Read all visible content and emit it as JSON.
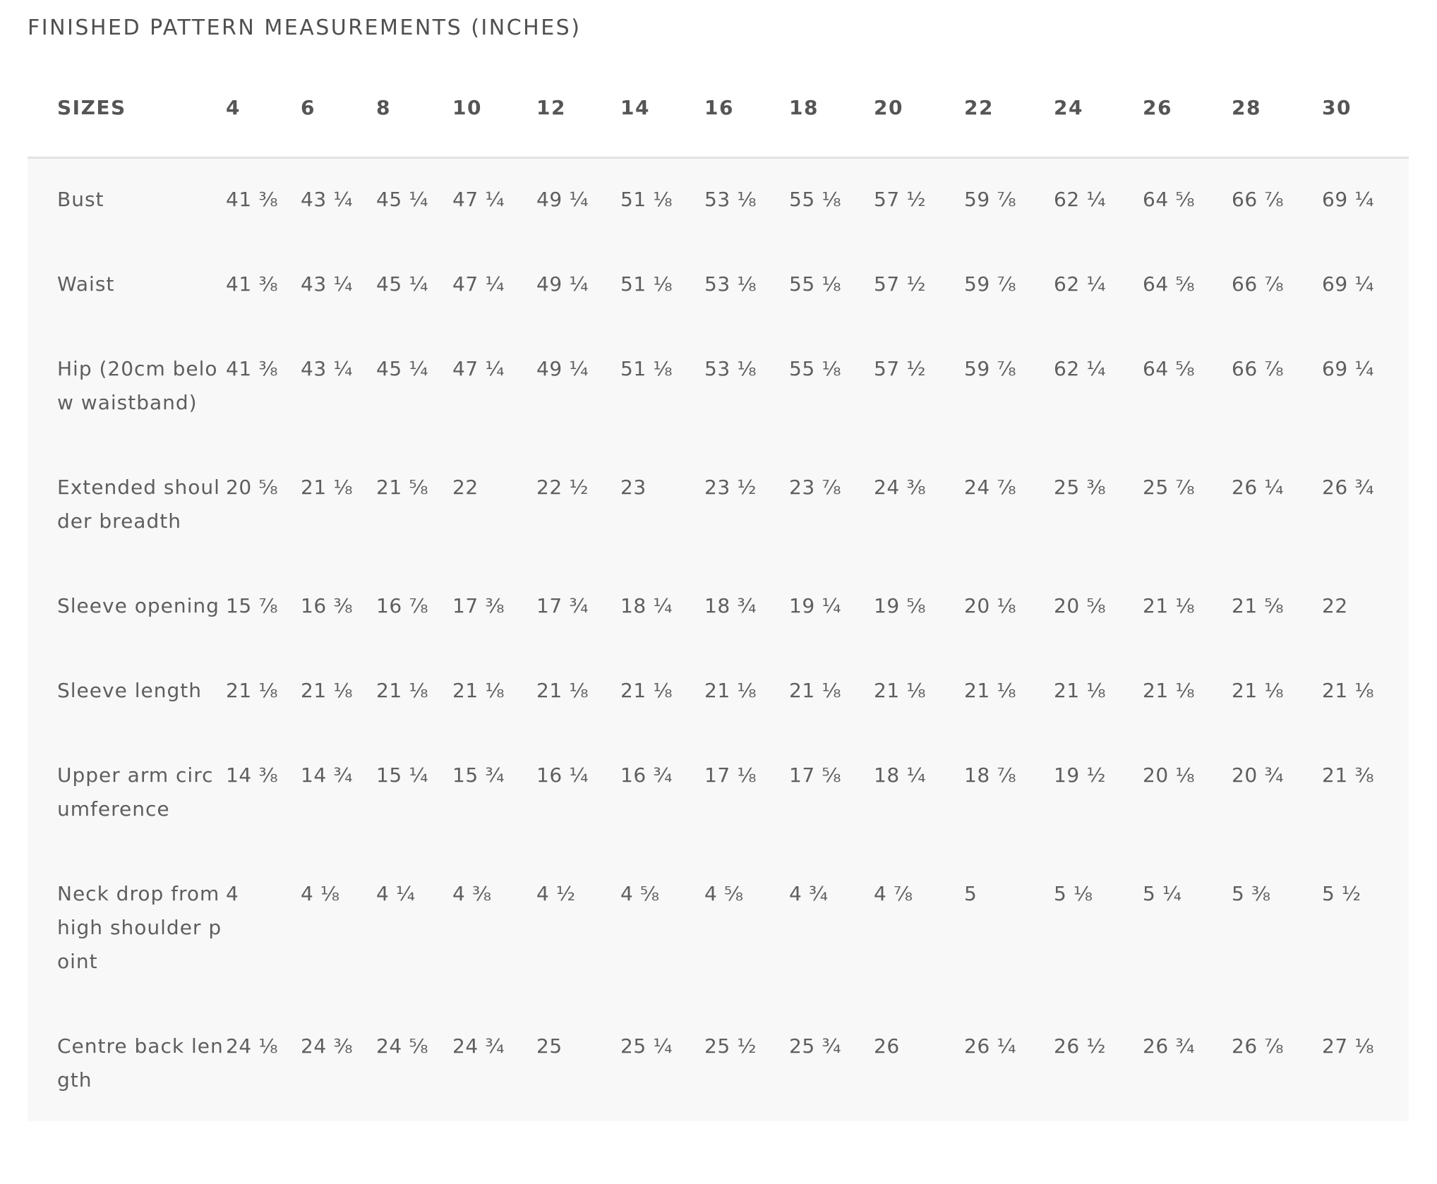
{
  "title": "FINISHED PATTERN MEASUREMENTS (INCHES)",
  "table": {
    "header_label": "SIZES",
    "sizes": [
      "4",
      "6",
      "8",
      "10",
      "12",
      "14",
      "16",
      "18",
      "20",
      "22",
      "24",
      "26",
      "28",
      "30"
    ],
    "rows": [
      {
        "label": "Bust",
        "values": [
          "41 ⅜",
          "43 ¼",
          "45 ¼",
          "47 ¼",
          "49 ¼",
          "51 ⅛",
          "53 ⅛",
          "55 ⅛",
          "57 ½",
          "59 ⅞",
          "62 ¼",
          "64 ⅝",
          "66 ⅞",
          "69 ¼"
        ]
      },
      {
        "label": "Waist",
        "values": [
          "41 ⅜",
          "43 ¼",
          "45 ¼",
          "47 ¼",
          "49 ¼",
          "51 ⅛",
          "53 ⅛",
          "55 ⅛",
          "57 ½",
          "59 ⅞",
          "62 ¼",
          "64 ⅝",
          "66 ⅞",
          "69 ¼"
        ]
      },
      {
        "label": "Hip (20cm below waistband)",
        "values": [
          "41 ⅜",
          "43 ¼",
          "45 ¼",
          "47 ¼",
          "49 ¼",
          "51 ⅛",
          "53 ⅛",
          "55 ⅛",
          "57 ½",
          "59 ⅞",
          "62 ¼",
          "64 ⅝",
          "66 ⅞",
          "69 ¼"
        ]
      },
      {
        "label": "Extended shoulder breadth",
        "values": [
          "20 ⅝",
          "21 ⅛",
          "21 ⅝",
          "22",
          "22 ½",
          "23",
          "23 ½",
          "23 ⅞",
          "24 ⅜",
          "24 ⅞",
          "25 ⅜",
          "25 ⅞",
          "26 ¼",
          "26 ¾"
        ]
      },
      {
        "label": "Sleeve opening",
        "values": [
          "15 ⅞",
          "16 ⅜",
          "16 ⅞",
          "17 ⅜",
          "17 ¾",
          "18 ¼",
          "18 ¾",
          "19 ¼",
          "19 ⅝",
          "20 ⅛",
          "20 ⅝",
          "21 ⅛",
          "21 ⅝",
          "22"
        ]
      },
      {
        "label": "Sleeve length",
        "values": [
          "21 ⅛",
          "21 ⅛",
          "21 ⅛",
          "21 ⅛",
          "21 ⅛",
          "21 ⅛",
          "21 ⅛",
          "21 ⅛",
          "21 ⅛",
          "21 ⅛",
          "21 ⅛",
          "21 ⅛",
          "21 ⅛",
          "21 ⅛"
        ]
      },
      {
        "label": "Upper arm circumference",
        "values": [
          "14 ⅜",
          "14 ¾",
          "15 ¼",
          "15 ¾",
          "16 ¼",
          "16 ¾",
          "17 ⅛",
          "17 ⅝",
          "18 ¼",
          "18 ⅞",
          "19 ½",
          "20 ⅛",
          "20 ¾",
          "21 ⅜"
        ]
      },
      {
        "label": "Neck drop from high shoulder point",
        "values": [
          "4",
          "4 ⅛",
          "4 ¼",
          "4 ⅜",
          "4 ½",
          "4 ⅝",
          "4 ⅝",
          "4 ¾",
          "4 ⅞",
          "5",
          "5 ⅛",
          "5 ¼",
          "5 ⅜",
          "5 ½"
        ]
      },
      {
        "label": "Centre back length",
        "values": [
          "24 ⅛",
          "24 ⅜",
          "24 ⅝",
          "24 ¾",
          "25",
          "25 ¼",
          "25 ½",
          "25 ¾",
          "26",
          "26 ¼",
          "26 ½",
          "26 ¾",
          "26 ⅞",
          "27 ⅛"
        ]
      }
    ]
  }
}
